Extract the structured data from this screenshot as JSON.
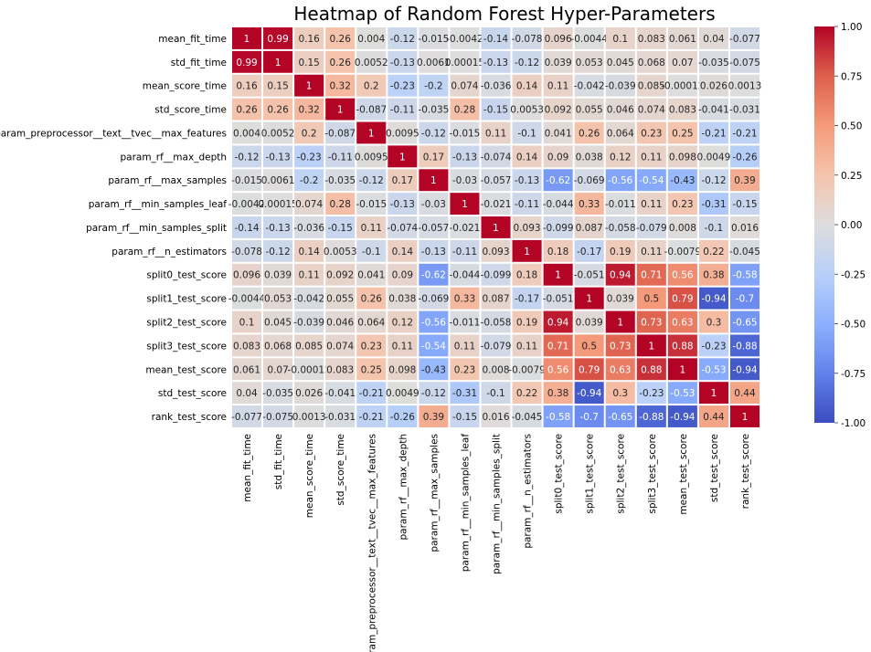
{
  "chart_data": {
    "type": "heatmap",
    "title": "Heatmap of Random Forest Hyper-Parameters",
    "labels": [
      "mean_fit_time",
      "std_fit_time",
      "mean_score_time",
      "std_score_time",
      "param_preprocessor__text__tvec__max_features",
      "param_rf__max_depth",
      "param_rf__max_samples",
      "param_rf__min_samples_leaf",
      "param_rf__min_samples_split",
      "param_rf__n_estimators",
      "split0_test_score",
      "split1_test_score",
      "split2_test_score",
      "split3_test_score",
      "mean_test_score",
      "std_test_score",
      "rank_test_score"
    ],
    "values": [
      [
        1,
        0.99,
        0.16,
        0.26,
        0.004,
        -0.12,
        -0.015,
        -0.0042,
        -0.14,
        -0.078,
        0.096,
        -0.0044,
        0.1,
        0.083,
        0.061,
        0.04,
        -0.077
      ],
      [
        0.99,
        1,
        0.15,
        0.26,
        0.0052,
        -0.13,
        0.0061,
        0.00015,
        -0.13,
        -0.12,
        0.039,
        0.053,
        0.045,
        0.068,
        0.07,
        -0.035,
        -0.075
      ],
      [
        0.16,
        0.15,
        1,
        0.32,
        0.2,
        -0.23,
        -0.2,
        0.074,
        -0.036,
        0.14,
        0.11,
        -0.042,
        -0.039,
        0.085,
        -0.00012,
        0.026,
        0.0013
      ],
      [
        0.26,
        0.26,
        0.32,
        1,
        -0.087,
        -0.11,
        -0.035,
        0.28,
        -0.15,
        0.0053,
        0.092,
        0.055,
        0.046,
        0.074,
        0.083,
        -0.041,
        -0.031
      ],
      [
        0.004,
        0.0052,
        0.2,
        -0.087,
        1,
        0.0095,
        -0.12,
        -0.015,
        0.11,
        -0.1,
        0.041,
        0.26,
        0.064,
        0.23,
        0.25,
        -0.21,
        -0.21
      ],
      [
        -0.12,
        -0.13,
        -0.23,
        -0.11,
        0.0095,
        1,
        0.17,
        -0.13,
        -0.074,
        0.14,
        0.09,
        0.038,
        0.12,
        0.11,
        0.098,
        0.0049,
        -0.26
      ],
      [
        -0.015,
        0.0061,
        -0.2,
        -0.035,
        -0.12,
        0.17,
        1,
        -0.03,
        -0.057,
        -0.13,
        -0.62,
        -0.069,
        -0.56,
        -0.54,
        -0.43,
        -0.12,
        0.39
      ],
      [
        -0.0042,
        0.00015,
        0.074,
        0.28,
        -0.015,
        -0.13,
        -0.03,
        1,
        -0.021,
        -0.11,
        -0.044,
        0.33,
        -0.011,
        0.11,
        0.23,
        -0.31,
        -0.15
      ],
      [
        -0.14,
        -0.13,
        -0.036,
        -0.15,
        0.11,
        -0.074,
        -0.057,
        -0.021,
        1,
        0.093,
        -0.099,
        0.087,
        -0.058,
        -0.079,
        0.008,
        -0.1,
        0.016
      ],
      [
        -0.078,
        -0.12,
        0.14,
        0.0053,
        -0.1,
        0.14,
        -0.13,
        -0.11,
        0.093,
        1,
        0.18,
        -0.17,
        0.19,
        0.11,
        -0.0079,
        0.22,
        -0.045
      ],
      [
        0.096,
        0.039,
        0.11,
        0.092,
        0.041,
        0.09,
        -0.62,
        -0.044,
        -0.099,
        0.18,
        1,
        -0.051,
        0.94,
        0.71,
        0.56,
        0.38,
        -0.58
      ],
      [
        -0.0044,
        0.053,
        -0.042,
        0.055,
        0.26,
        0.038,
        -0.069,
        0.33,
        0.087,
        -0.17,
        -0.051,
        1,
        0.039,
        0.5,
        0.79,
        -0.94,
        -0.7
      ],
      [
        0.1,
        0.045,
        -0.039,
        0.046,
        0.064,
        0.12,
        -0.56,
        -0.011,
        -0.058,
        0.19,
        0.94,
        0.039,
        1,
        0.73,
        0.63,
        0.3,
        -0.65
      ],
      [
        0.083,
        0.068,
        0.085,
        0.074,
        0.23,
        0.11,
        -0.54,
        0.11,
        -0.079,
        0.11,
        0.71,
        0.5,
        0.73,
        1,
        0.88,
        -0.23,
        -0.88
      ],
      [
        0.061,
        0.07,
        -0.00012,
        0.083,
        0.25,
        0.098,
        -0.43,
        0.23,
        0.008,
        -0.0079,
        0.56,
        0.79,
        0.63,
        0.88,
        1,
        -0.53,
        -0.94
      ],
      [
        0.04,
        -0.035,
        0.026,
        -0.041,
        -0.21,
        0.0049,
        -0.12,
        -0.31,
        -0.1,
        0.22,
        0.38,
        -0.94,
        0.3,
        -0.23,
        -0.53,
        1,
        0.44
      ],
      [
        -0.077,
        -0.075,
        0.0013,
        -0.031,
        -0.21,
        -0.26,
        0.39,
        -0.15,
        0.016,
        -0.045,
        -0.58,
        -0.7,
        -0.65,
        -0.88,
        -0.94,
        0.44,
        1
      ]
    ],
    "colorscale": "coolwarm",
    "vmin": -1.0,
    "vmax": 1.0,
    "colorbar_ticks": [
      "-1.00",
      "-0.75",
      "-0.50",
      "-0.25",
      "0.00",
      "0.25",
      "0.50",
      "0.75",
      "1.00"
    ],
    "colors": {
      "low": "#3b4cc0",
      "mid": "#dddddd",
      "high": "#b40426",
      "grid": "#ffffff"
    }
  }
}
